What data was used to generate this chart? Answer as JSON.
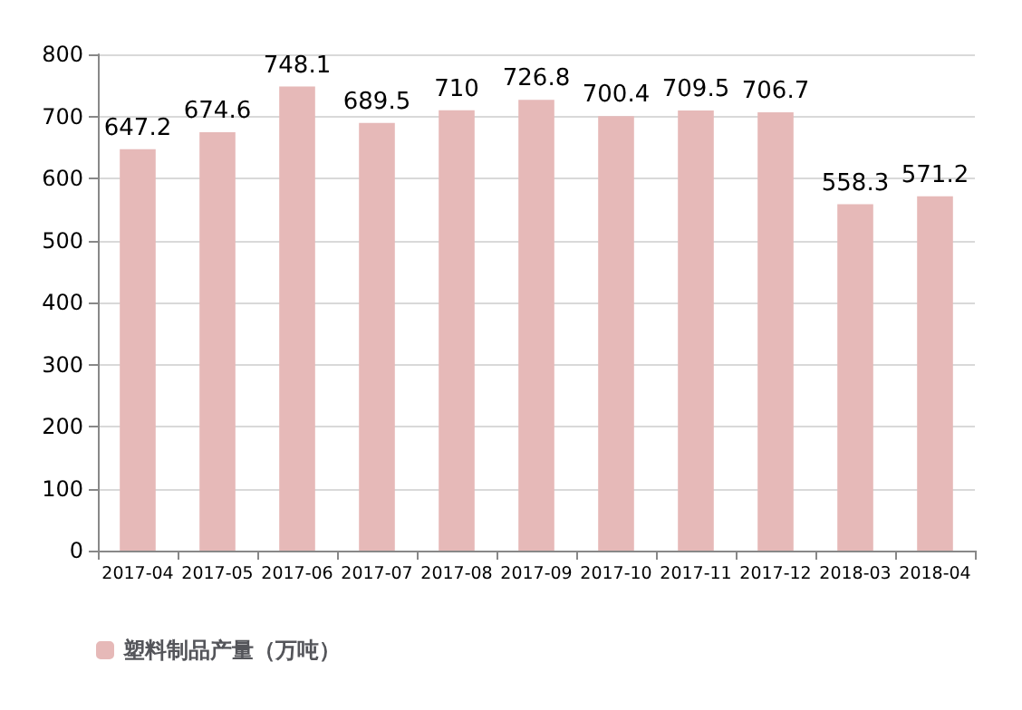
{
  "chart_data": {
    "type": "bar",
    "categories": [
      "2017-04",
      "2017-05",
      "2017-06",
      "2017-07",
      "2017-08",
      "2017-09",
      "2017-10",
      "2017-11",
      "2017-12",
      "2018-03",
      "2018-04"
    ],
    "series": [
      {
        "name": "塑料制品产量（万吨）",
        "color": "#e6b9b8",
        "values": [
          647.2,
          674.6,
          748.1,
          689.5,
          710,
          726.8,
          700.4,
          709.5,
          706.7,
          558.3,
          571.2
        ]
      }
    ],
    "ylim": [
      0,
      800
    ],
    "yticks": [
      0,
      100,
      200,
      300,
      400,
      500,
      600,
      700,
      800
    ],
    "grid": "y",
    "legend": "bottom left",
    "data_labels": true
  }
}
